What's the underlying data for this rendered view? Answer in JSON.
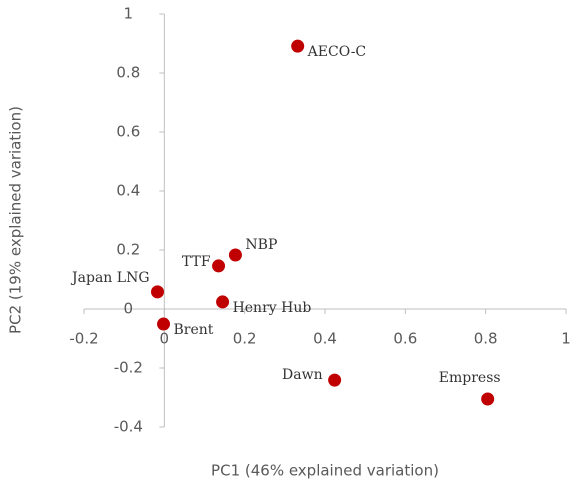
{
  "chart_data": {
    "type": "scatter",
    "x_label": "PC1 (46% explained variation)",
    "y_label": "PC2 (19% explained variation)",
    "labels": [
      "AECO-C",
      "NBP",
      "TTF",
      "Japan LNG",
      "Henry Hub",
      "Brent",
      "Dawn",
      "Empress"
    ],
    "x": [
      0.332,
      0.177,
      0.135,
      -0.017,
      0.145,
      -0.002,
      0.424,
      0.805
    ],
    "series": [
      {
        "color": "#c00000",
        "values": [
          0.891,
          0.183,
          0.146,
          0.058,
          0.024,
          -0.051,
          -0.241,
          -0.305
        ]
      }
    ],
    "xlim": [
      -0.2,
      1
    ],
    "xticks": [
      -0.2,
      0,
      0.2,
      0.4,
      0.6,
      0.8,
      1
    ],
    "ylim": [
      -0.4,
      1
    ],
    "yticks": [
      -0.4,
      -0.2,
      0,
      0.2,
      0.4,
      0.6,
      0.8,
      1
    ]
  }
}
